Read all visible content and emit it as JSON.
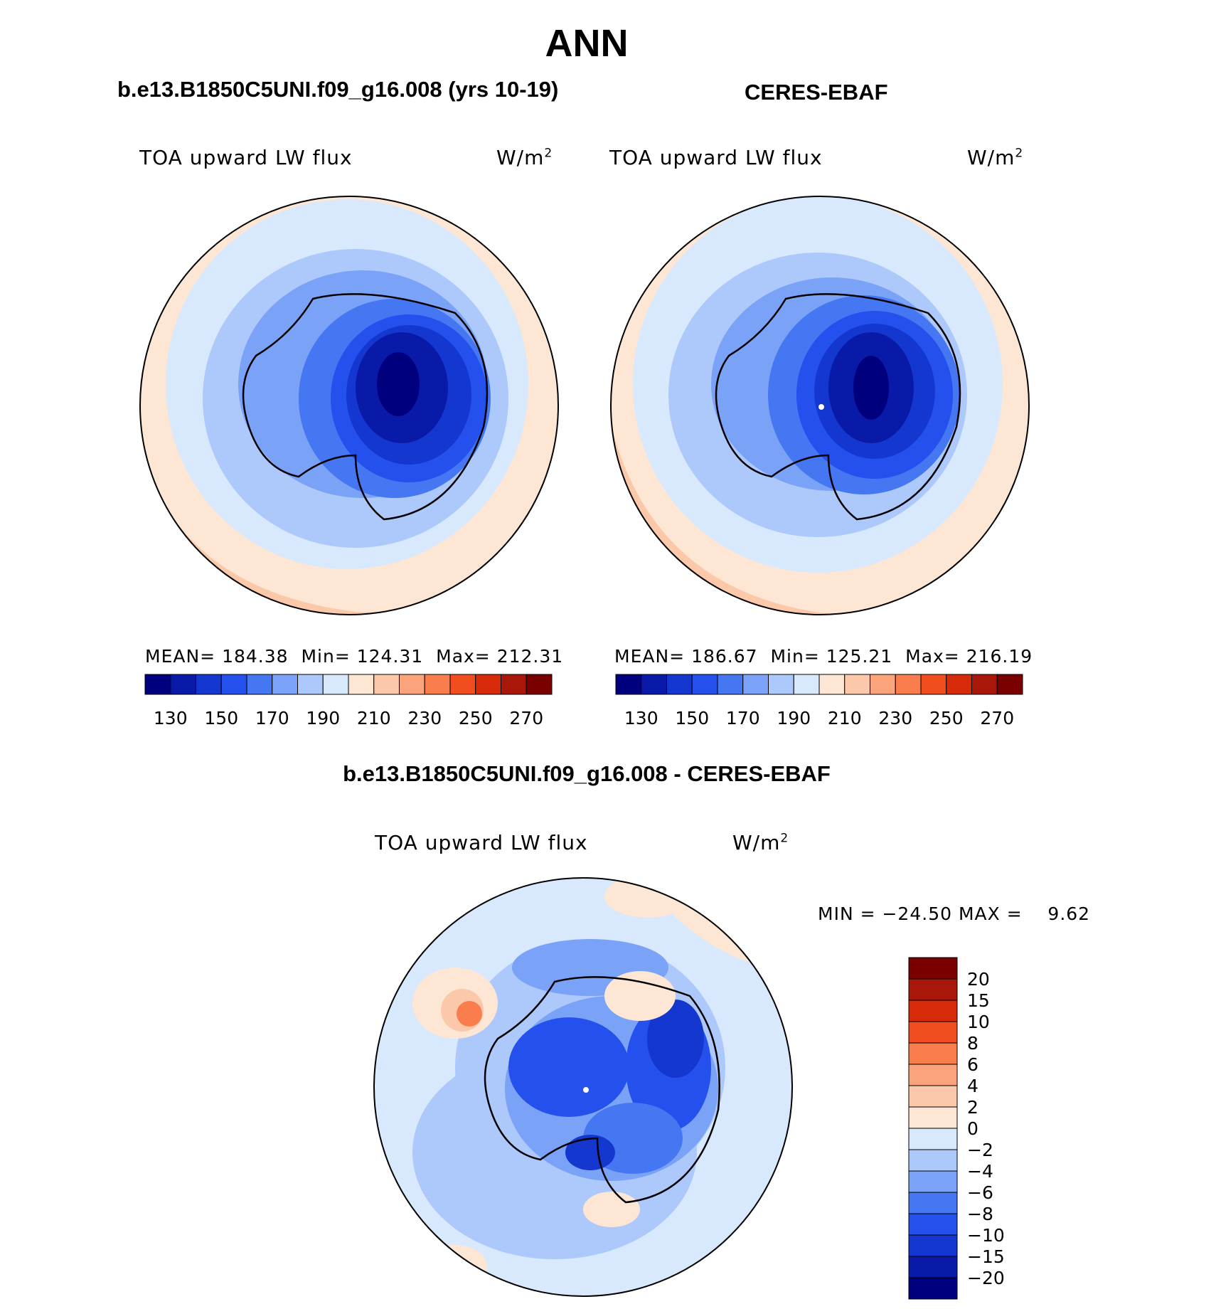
{
  "figure": {
    "season": "ANN",
    "left_panel": {
      "case": "b.e13.B1850C5UNI.f09_g16.008 (yrs 10-19)",
      "variable": "TOA upward LW flux",
      "units": "W/m",
      "units_exp": "2",
      "stats": {
        "mean_label": "MEAN=",
        "mean": "184.38",
        "min_label": "Min=",
        "min": "124.31",
        "max_label": "Max=",
        "max": "212.31"
      }
    },
    "right_panel": {
      "case": "CERES-EBAF",
      "variable": "TOA upward LW flux",
      "units": "W/m",
      "units_exp": "2",
      "stats": {
        "mean_label": "MEAN=",
        "mean": "186.67",
        "min_label": "Min=",
        "min": "125.21",
        "max_label": "Max=",
        "max": "216.19"
      }
    },
    "colorbar_abs": {
      "labels": [
        "130",
        "150",
        "170",
        "190",
        "210",
        "230",
        "250",
        "270"
      ],
      "colors": [
        "#00007f",
        "#0a1aa8",
        "#1437d0",
        "#2450ee",
        "#4677f2",
        "#7aa2f7",
        "#adc8fb",
        "#d8e8fd",
        "#fde7d4",
        "#fcc8aa",
        "#fba37a",
        "#f97d4d",
        "#f24d1e",
        "#d72a08",
        "#a8170a",
        "#7a0000"
      ]
    },
    "diff_panel": {
      "case": "b.e13.B1850C5UNI.f09_g16.008 - CERES-EBAF",
      "variable": "TOA upward LW flux",
      "units": "W/m",
      "units_exp": "2",
      "minmax": "MIN = −24.50 MAX =    9.62"
    },
    "colorbar_diff": {
      "labels": [
        "20",
        "15",
        "10",
        "8",
        "6",
        "4",
        "2",
        "0",
        "−2",
        "−4",
        "−6",
        "−8",
        "−10",
        "−15",
        "−20"
      ],
      "colors": [
        "#7a0000",
        "#a8170a",
        "#d72a08",
        "#f24d1e",
        "#f97d4d",
        "#fba37a",
        "#fcc8aa",
        "#fde7d4",
        "#d8e8fd",
        "#adc8fb",
        "#7aa2f7",
        "#4677f2",
        "#2450ee",
        "#1437d0",
        "#0a1aa8",
        "#00007f"
      ]
    }
  }
}
